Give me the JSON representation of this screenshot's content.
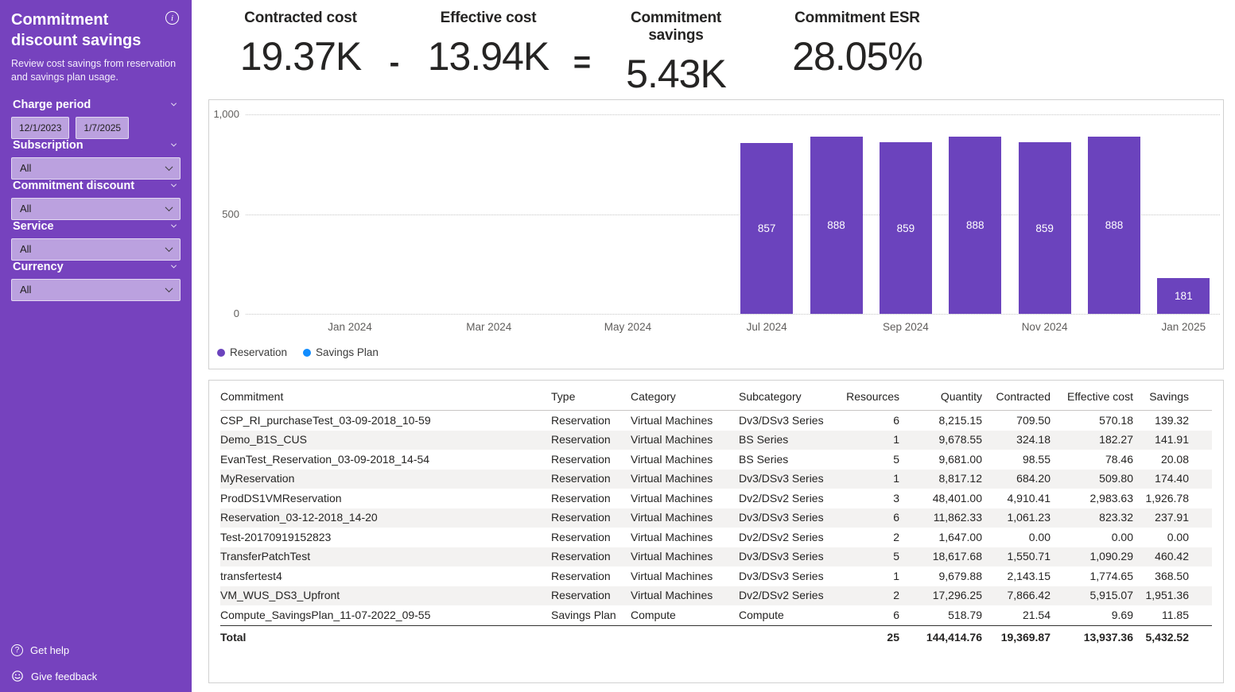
{
  "colors": {
    "sidebar_bg": "#7642BE",
    "reservation_purple": "#6B43BD",
    "savings_plan_blue": "#118DFF",
    "row_alt_bg": "#F3F2F1"
  },
  "sidebar": {
    "title": "Commitment discount savings",
    "subtitle": "Review cost savings from reservation and savings plan usage.",
    "filters": [
      {
        "label": "Charge period",
        "start": "12/1/2023",
        "end": "1/7/2025"
      },
      {
        "label": "Subscription",
        "value": "All"
      },
      {
        "label": "Commitment discount",
        "value": "All"
      },
      {
        "label": "Service",
        "value": "All"
      },
      {
        "label": "Currency",
        "value": "All"
      }
    ],
    "footer": [
      {
        "label": "Get help"
      },
      {
        "label": "Give feedback"
      }
    ]
  },
  "kpis": {
    "items": [
      {
        "label": "Contracted cost",
        "value": "19.37K"
      },
      {
        "label": "Effective cost",
        "value": "13.94K"
      },
      {
        "label": "Commitment savings",
        "value": "5.43K"
      },
      {
        "label": "Commitment ESR",
        "value": "28.05%"
      }
    ],
    "operators": [
      "-",
      "="
    ]
  },
  "chart_data": {
    "type": "bar",
    "title": "",
    "categories": [
      "Dec 2023",
      "Jan 2024",
      "Feb 2024",
      "Mar 2024",
      "Apr 2024",
      "May 2024",
      "Jun 2024",
      "Jul 2024",
      "Aug 2024",
      "Sep 2024",
      "Oct 2024",
      "Nov 2024",
      "Dec 2024",
      "Jan 2025"
    ],
    "series": [
      {
        "name": "Reservation",
        "color": "#6B43BD",
        "values": [
          null,
          null,
          null,
          null,
          null,
          null,
          null,
          857,
          888,
          859,
          888,
          859,
          888,
          181
        ]
      }
    ],
    "legend": [
      {
        "name": "Reservation",
        "color": "#6B43BD"
      },
      {
        "name": "Savings Plan",
        "color": "#118DFF"
      }
    ],
    "x_tick_slots": [
      1,
      3,
      5,
      7,
      9,
      11,
      13
    ],
    "x_tick_labels": [
      "Jan 2024",
      "Mar 2024",
      "May 2024",
      "Jul 2024",
      "Sep 2024",
      "Nov 2024",
      "Jan 2025"
    ],
    "y_ticks": [
      {
        "value": 0,
        "label": "0"
      },
      {
        "value": 500,
        "label": "500"
      },
      {
        "value": 1000,
        "label": "1,000"
      }
    ],
    "ylim": [
      0,
      1000
    ],
    "grid": "dotted-horizontal",
    "legend_position": "bottom-left"
  },
  "table": {
    "columns": [
      {
        "label": "Commitment",
        "align": "left"
      },
      {
        "label": "Type",
        "align": "left"
      },
      {
        "label": "Category",
        "align": "left"
      },
      {
        "label": "Subcategory",
        "align": "left"
      },
      {
        "label": "Resources",
        "align": "right"
      },
      {
        "label": "Quantity",
        "align": "right"
      },
      {
        "label": "Contracted",
        "align": "right"
      },
      {
        "label": "Effective cost",
        "align": "right"
      },
      {
        "label": "Savings",
        "align": "right"
      }
    ],
    "rows": [
      [
        "CSP_RI_purchaseTest_03-09-2018_10-59",
        "Reservation",
        "Virtual Machines",
        "Dv3/DSv3 Series",
        "6",
        "8,215.15",
        "709.50",
        "570.18",
        "139.32"
      ],
      [
        "Demo_B1S_CUS",
        "Reservation",
        "Virtual Machines",
        "BS Series",
        "1",
        "9,678.55",
        "324.18",
        "182.27",
        "141.91"
      ],
      [
        "EvanTest_Reservation_03-09-2018_14-54",
        "Reservation",
        "Virtual Machines",
        "BS Series",
        "5",
        "9,681.00",
        "98.55",
        "78.46",
        "20.08"
      ],
      [
        "MyReservation",
        "Reservation",
        "Virtual Machines",
        "Dv3/DSv3 Series",
        "1",
        "8,817.12",
        "684.20",
        "509.80",
        "174.40"
      ],
      [
        "ProdDS1VMReservation",
        "Reservation",
        "Virtual Machines",
        "Dv2/DSv2 Series",
        "3",
        "48,401.00",
        "4,910.41",
        "2,983.63",
        "1,926.78"
      ],
      [
        "Reservation_03-12-2018_14-20",
        "Reservation",
        "Virtual Machines",
        "Dv3/DSv3 Series",
        "6",
        "11,862.33",
        "1,061.23",
        "823.32",
        "237.91"
      ],
      [
        "Test-20170919152823",
        "Reservation",
        "Virtual Machines",
        "Dv2/DSv2 Series",
        "2",
        "1,647.00",
        "0.00",
        "0.00",
        "0.00"
      ],
      [
        "TransferPatchTest",
        "Reservation",
        "Virtual Machines",
        "Dv3/DSv3 Series",
        "5",
        "18,617.68",
        "1,550.71",
        "1,090.29",
        "460.42"
      ],
      [
        "transfertest4",
        "Reservation",
        "Virtual Machines",
        "Dv3/DSv3 Series",
        "1",
        "9,679.88",
        "2,143.15",
        "1,774.65",
        "368.50"
      ],
      [
        "VM_WUS_DS3_Upfront",
        "Reservation",
        "Virtual Machines",
        "Dv2/DSv2 Series",
        "2",
        "17,296.25",
        "7,866.42",
        "5,915.07",
        "1,951.36"
      ],
      [
        "Compute_SavingsPlan_11-07-2022_09-55",
        "Savings Plan",
        "Compute",
        "Compute",
        "6",
        "518.79",
        "21.54",
        "9.69",
        "11.85"
      ]
    ],
    "total": [
      "Total",
      "",
      "",
      "",
      "25",
      "144,414.76",
      "19,369.87",
      "13,937.36",
      "5,432.52"
    ]
  }
}
